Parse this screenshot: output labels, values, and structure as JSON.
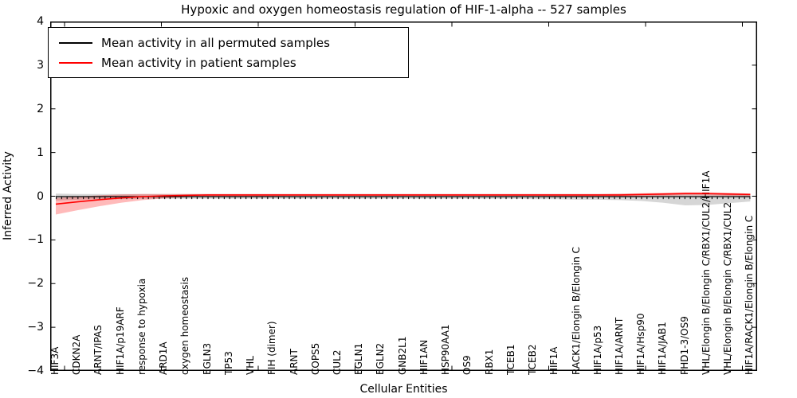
{
  "title": "Hypoxic and oxygen homeostasis regulation of HIF-1-alpha -- 527 samples",
  "axes": {
    "ylabel": "Inferred Activity",
    "xlabel": "Cellular Entities",
    "ytick_labels": [
      "4",
      "3",
      "2",
      "1",
      "0",
      "−1",
      "−2",
      "−3",
      "−4"
    ]
  },
  "legend": {
    "items": [
      {
        "label": "Mean activity in all permuted samples",
        "color": "#000000"
      },
      {
        "label": "Mean activity in patient samples",
        "color": "#ff0000"
      }
    ]
  },
  "chart_data": {
    "type": "line",
    "title": "Hypoxic and oxygen homeostasis regulation of HIF-1-alpha -- 527 samples",
    "xlabel": "Cellular Entities",
    "ylabel": "Inferred Activity",
    "ylim": [
      -4,
      4
    ],
    "grid": false,
    "legend_position": "upper left",
    "categories": [
      "HIF3A",
      "CDKN2A",
      "ARNT/IPAS",
      "HIF1A/p19ARF",
      "response to hypoxia",
      "ARD1A",
      "oxygen homeostasis",
      "EGLN3",
      "TP53",
      "VHL",
      "FIH (dimer)",
      "ARNT",
      "COPS5",
      "CUL2",
      "EGLN1",
      "EGLN2",
      "GNB2L1",
      "HIF1AN",
      "HSP90AA1",
      "OS9",
      "RBX1",
      "TCEB1",
      "TCEB2",
      "HIF1A",
      "RACK1/Elongin B/Elongin C",
      "HIF1A/p53",
      "HIF1A/ARNT",
      "HIF1A/Hsp90",
      "HIF1A/JAB1",
      "PHD1-3/OS9",
      "VHL/Elongin B/Elongin C/RBX1/CUL2/HIF1A",
      "VHL/Elongin B/Elongin C/RBX1/CUL2",
      "HIF1A/RACK1/Elongin B/Elongin C"
    ],
    "series": [
      {
        "name": "Mean activity in all permuted samples",
        "color": "#000000",
        "values": [
          -0.01,
          -0.01,
          -0.01,
          -0.01,
          -0.01,
          -0.01,
          -0.01,
          -0.01,
          -0.01,
          -0.01,
          -0.01,
          -0.01,
          -0.01,
          -0.01,
          -0.01,
          -0.01,
          -0.01,
          -0.01,
          -0.01,
          -0.01,
          -0.01,
          -0.01,
          -0.01,
          -0.01,
          -0.01,
          -0.01,
          -0.01,
          -0.01,
          -0.01,
          -0.01,
          -0.01,
          -0.01,
          -0.01
        ]
      },
      {
        "name": "Mean activity in patient samples",
        "color": "#ff0000",
        "values": [
          -0.18,
          -0.13,
          -0.08,
          -0.04,
          -0.01,
          0.01,
          0.02,
          0.03,
          0.03,
          0.03,
          0.03,
          0.03,
          0.03,
          0.03,
          0.03,
          0.03,
          0.03,
          0.03,
          0.03,
          0.03,
          0.03,
          0.03,
          0.03,
          0.03,
          0.03,
          0.03,
          0.03,
          0.04,
          0.05,
          0.06,
          0.06,
          0.05,
          0.04
        ]
      }
    ],
    "bands": [
      {
        "name": "permuted-samples-band",
        "color": "rgba(0,0,0,0.16)",
        "upper": [
          0.06,
          0.05,
          0.05,
          0.05,
          0.05,
          0.05,
          0.05,
          0.05,
          0.05,
          0.05,
          0.05,
          0.05,
          0.05,
          0.05,
          0.05,
          0.05,
          0.05,
          0.05,
          0.05,
          0.05,
          0.05,
          0.05,
          0.05,
          0.05,
          0.05,
          0.05,
          0.05,
          0.05,
          0.06,
          0.06,
          0.06,
          0.06,
          0.06
        ],
        "lower": [
          -0.1,
          -0.08,
          -0.07,
          -0.07,
          -0.06,
          -0.06,
          -0.06,
          -0.06,
          -0.06,
          -0.06,
          -0.06,
          -0.06,
          -0.06,
          -0.06,
          -0.06,
          -0.06,
          -0.06,
          -0.06,
          -0.06,
          -0.06,
          -0.06,
          -0.06,
          -0.07,
          -0.07,
          -0.08,
          -0.08,
          -0.09,
          -0.11,
          -0.15,
          -0.21,
          -0.2,
          -0.16,
          -0.12
        ]
      },
      {
        "name": "patient-samples-band",
        "color": "rgba(255,0,0,0.27)",
        "upper": [
          -0.04,
          -0.01,
          0.02,
          0.04,
          0.05,
          0.05,
          0.05,
          0.05,
          0.05,
          0.05,
          0.05,
          0.05,
          0.05,
          0.05,
          0.05,
          0.05,
          0.05,
          0.05,
          0.05,
          0.05,
          0.05,
          0.05,
          0.05,
          0.05,
          0.05,
          0.05,
          0.06,
          0.07,
          0.08,
          0.09,
          0.09,
          0.08,
          0.06
        ],
        "lower": [
          -0.42,
          -0.32,
          -0.23,
          -0.15,
          -0.09,
          -0.05,
          -0.02,
          -0.01,
          0.0,
          0.0,
          0.0,
          0.01,
          0.01,
          0.01,
          0.01,
          0.01,
          0.01,
          0.01,
          0.01,
          0.01,
          0.01,
          0.01,
          0.01,
          0.0,
          0.0,
          0.0,
          0.0,
          0.0,
          0.01,
          0.02,
          0.02,
          0.01,
          0.0
        ]
      }
    ]
  }
}
